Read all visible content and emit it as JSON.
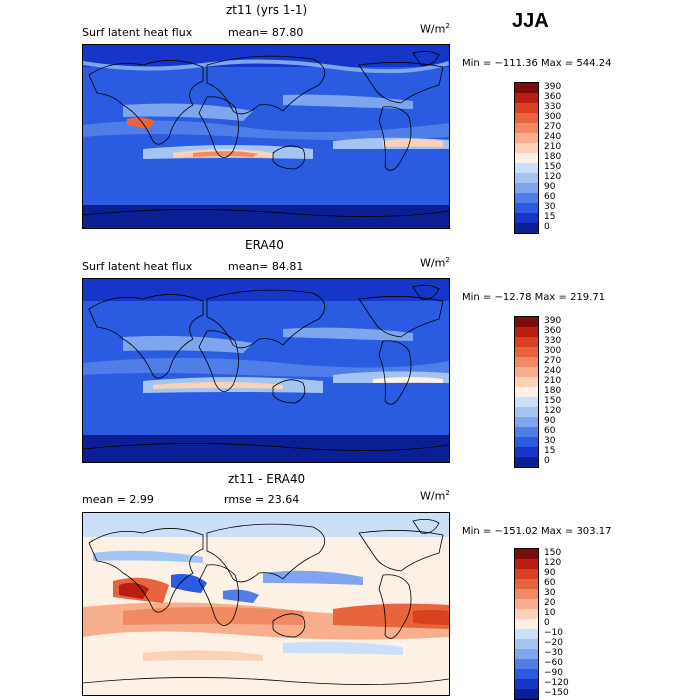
{
  "season": "JJA",
  "units": {
    "base": "W/m",
    "exp": "2"
  },
  "panels": [
    {
      "title": "zt11 (yrs 1-1)",
      "subtitle_left": "Surf latent heat flux",
      "subtitle_right": "mean=  87.80",
      "stats": "Min = −111.36  Max = 544.24",
      "palette": "full"
    },
    {
      "title": "ERA40",
      "subtitle_left": "Surf latent heat flux",
      "subtitle_right": "mean=  84.81",
      "stats": "Min = −12.78  Max = 219.71",
      "palette": "full"
    },
    {
      "title": "zt11 - ERA40",
      "subtitle_left": "mean =    2.99",
      "subtitle_right": "rmse =   23.64",
      "stats": "Min = −151.02  Max = 303.17",
      "palette": "diff"
    }
  ],
  "colorbars": {
    "full": {
      "labels": [
        "390",
        "360",
        "330",
        "300",
        "270",
        "240",
        "210",
        "180",
        "150",
        "120",
        "90",
        "60",
        "30",
        "15",
        "0"
      ],
      "colors": [
        "#7a0c0c",
        "#b81f12",
        "#d8401f",
        "#e8643c",
        "#f08a62",
        "#f6ae8c",
        "#fbd2b8",
        "#fdf0e4",
        "#cbdff8",
        "#a4c4f2",
        "#7ea6ee",
        "#4f7ee8",
        "#2a5be0",
        "#1536c8",
        "#0a1f94"
      ]
    },
    "diff": {
      "labels": [
        "150",
        "120",
        "90",
        "60",
        "30",
        "20",
        "10",
        "0",
        "−10",
        "−20",
        "−30",
        "−60",
        "−90",
        "−120",
        "−150"
      ],
      "colors": [
        "#7a0c0c",
        "#b81f12",
        "#d8401f",
        "#e8643c",
        "#f08a62",
        "#f6ae8c",
        "#fbd2b8",
        "#fdf0e4",
        "#cbdff8",
        "#a4c4f2",
        "#7ea6ee",
        "#4f7ee8",
        "#2a5be0",
        "#1536c8",
        "#0a1f94"
      ]
    }
  }
}
